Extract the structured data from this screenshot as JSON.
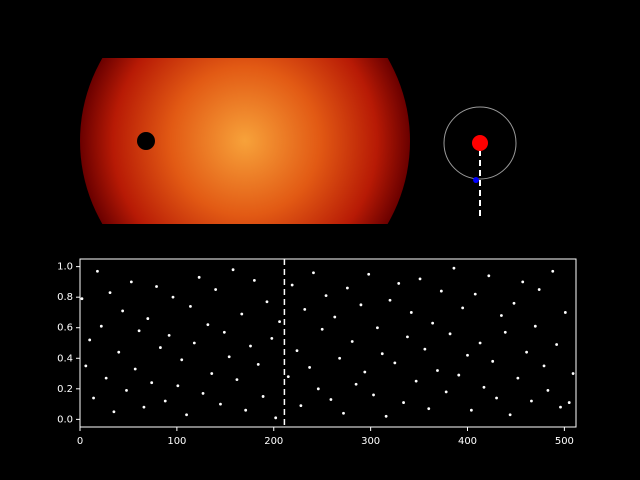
{
  "chart_data": {
    "type": "scatter",
    "color": "#ffffff",
    "x": [
      2,
      6,
      10,
      14,
      18,
      22,
      27,
      31,
      35,
      40,
      44,
      48,
      53,
      57,
      61,
      66,
      70,
      74,
      79,
      83,
      88,
      92,
      96,
      101,
      105,
      110,
      114,
      118,
      123,
      127,
      132,
      136,
      140,
      145,
      149,
      154,
      158,
      162,
      167,
      171,
      176,
      180,
      184,
      189,
      193,
      198,
      202,
      206,
      215,
      219,
      224,
      228,
      232,
      237,
      241,
      246,
      250,
      254,
      259,
      263,
      268,
      272,
      276,
      281,
      285,
      290,
      294,
      298,
      303,
      307,
      312,
      316,
      320,
      325,
      329,
      334,
      338,
      342,
      347,
      351,
      356,
      360,
      364,
      369,
      373,
      378,
      382,
      386,
      391,
      395,
      400,
      404,
      408,
      413,
      417,
      422,
      426,
      430,
      435,
      439,
      444,
      448,
      452,
      457,
      461,
      466,
      470,
      474,
      479,
      483,
      488,
      492,
      496,
      501,
      505,
      509
    ],
    "y": [
      0.79,
      0.35,
      0.52,
      0.14,
      0.97,
      0.61,
      0.27,
      0.83,
      0.05,
      0.44,
      0.71,
      0.19,
      0.9,
      0.33,
      0.58,
      0.08,
      0.66,
      0.24,
      0.87,
      0.47,
      0.12,
      0.55,
      0.8,
      0.22,
      0.39,
      0.03,
      0.74,
      0.5,
      0.93,
      0.17,
      0.62,
      0.3,
      0.85,
      0.1,
      0.57,
      0.41,
      0.98,
      0.26,
      0.69,
      0.06,
      0.48,
      0.91,
      0.36,
      0.15,
      0.77,
      0.53,
      0.01,
      0.64,
      0.28,
      0.88,
      0.45,
      0.09,
      0.72,
      0.34,
      0.96,
      0.2,
      0.59,
      0.81,
      0.13,
      0.67,
      0.4,
      0.04,
      0.86,
      0.51,
      0.23,
      0.75,
      0.31,
      0.95,
      0.16,
      0.6,
      0.43,
      0.02,
      0.78,
      0.37,
      0.89,
      0.11,
      0.54,
      0.7,
      0.25,
      0.92,
      0.46,
      0.07,
      0.63,
      0.32,
      0.84,
      0.18,
      0.56,
      0.99,
      0.29,
      0.73,
      0.42,
      0.06,
      0.82,
      0.5,
      0.21,
      0.94,
      0.38,
      0.14,
      0.68,
      0.57,
      0.03,
      0.76,
      0.27,
      0.9,
      0.44,
      0.12,
      0.61,
      0.85,
      0.35,
      0.19,
      0.97,
      0.49,
      0.08,
      0.7,
      0.11,
      0.3
    ],
    "marker_x": 211,
    "xlim": [
      0,
      512
    ],
    "ylim": [
      -0.05,
      1.05
    ],
    "xticks": [
      0,
      100,
      200,
      300,
      400,
      500
    ],
    "yticks": [
      {
        "value": 0,
        "label": "0.0"
      },
      {
        "value": 0.2,
        "label": "0.2"
      },
      {
        "value": 0.4,
        "label": "0.4"
      },
      {
        "value": 0.6,
        "label": "0.6"
      },
      {
        "value": 0.8,
        "label": "0.8"
      },
      {
        "value": 1,
        "label": "1.0"
      }
    ]
  }
}
